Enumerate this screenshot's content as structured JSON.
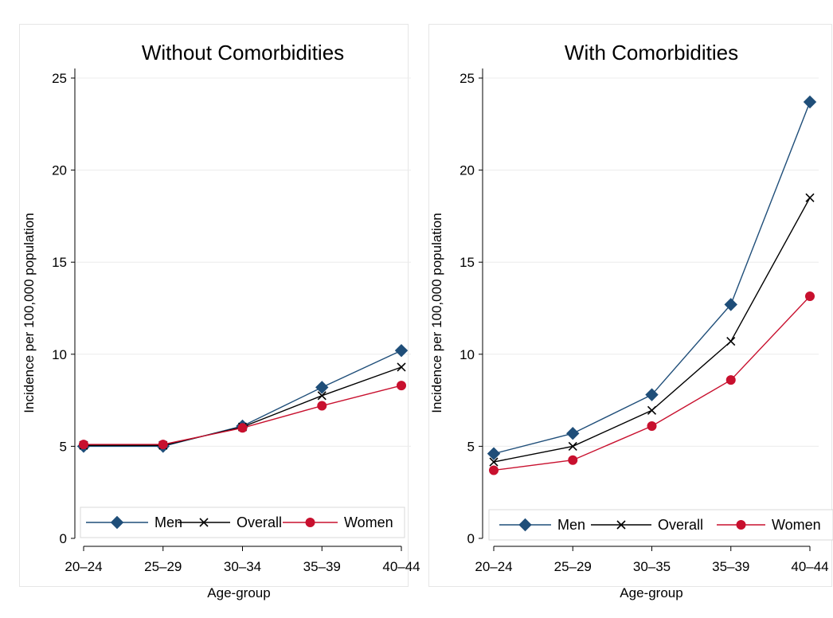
{
  "chart_data": [
    {
      "type": "line",
      "title": "Without Comorbidities",
      "xlabel": "Age-group",
      "ylabel": "Incidence per 100,000 population",
      "categories": [
        "20–24",
        "25–29",
        "30–34",
        "35–39",
        "40–44"
      ],
      "yticks": [
        0,
        5,
        10,
        15,
        20,
        25
      ],
      "ylim": [
        0,
        25
      ],
      "grid": true,
      "legend_position": "bottom",
      "series": [
        {
          "name": "Men",
          "marker": "diamond",
          "color": "#1f4e79",
          "values": [
            5.0,
            5.0,
            6.1,
            8.2,
            10.2
          ]
        },
        {
          "name": "Overall",
          "marker": "x",
          "color": "#000000",
          "values": [
            5.05,
            5.05,
            6.05,
            7.75,
            9.3
          ]
        },
        {
          "name": "Women",
          "marker": "circle",
          "color": "#c8102e",
          "values": [
            5.1,
            5.1,
            6.0,
            7.2,
            8.3
          ]
        }
      ]
    },
    {
      "type": "line",
      "title": "With Comorbidities",
      "xlabel": "Age-group",
      "ylabel": "Incidence per 100,000 population",
      "categories": [
        "20–24",
        "25–29",
        "30–35",
        "35–39",
        "40–44"
      ],
      "yticks": [
        0,
        5,
        10,
        15,
        20,
        25
      ],
      "ylim": [
        0,
        25
      ],
      "grid": true,
      "legend_position": "bottom",
      "series": [
        {
          "name": "Men",
          "marker": "diamond",
          "color": "#1f4e79",
          "values": [
            4.6,
            5.7,
            7.8,
            12.7,
            23.7
          ]
        },
        {
          "name": "Overall",
          "marker": "x",
          "color": "#000000",
          "values": [
            4.15,
            5.0,
            6.95,
            10.7,
            18.5
          ]
        },
        {
          "name": "Women",
          "marker": "circle",
          "color": "#c8102e",
          "values": [
            3.7,
            4.25,
            6.1,
            8.6,
            13.15
          ]
        }
      ]
    }
  ]
}
